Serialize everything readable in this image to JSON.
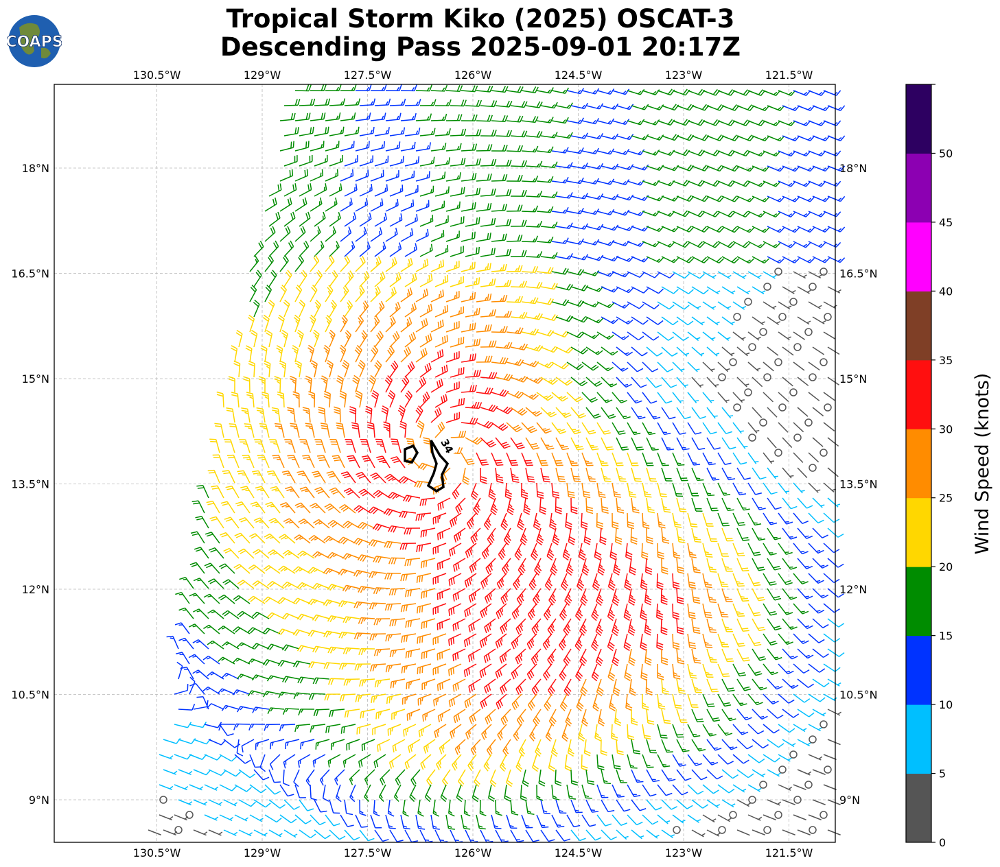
{
  "title_line1": "Tropical Storm Kiko (2025) OSCAT-3",
  "title_line2": "Descending Pass 2025-09-01 20:17Z",
  "logo": {
    "text": "COAPS",
    "icon": "globe-icon"
  },
  "map": {
    "lon_labels": [
      "130.5°W",
      "129°W",
      "127.5°W",
      "126°W",
      "124.5°W",
      "123°W",
      "121.5°W"
    ],
    "lat_labels": [
      "18°N",
      "16.5°N",
      "15°N",
      "13.5°N",
      "12°N",
      "10.5°N",
      "9°N"
    ],
    "contour_label": "34",
    "center": {
      "lon": -126.4,
      "lat": 13.9
    }
  },
  "colorbar": {
    "label": "Wind Speed (knots)",
    "ticks": [
      "0",
      "5",
      "10",
      "15",
      "20",
      "25",
      "30",
      "35",
      "40",
      "45",
      "50"
    ],
    "colors": [
      "#555555",
      "#00bfff",
      "#0033ff",
      "#008c00",
      "#ffd700",
      "#ff8c00",
      "#ff0f0f",
      "#7f3f26",
      "#ff00ff",
      "#8c00b2",
      "#2d0061"
    ]
  }
}
